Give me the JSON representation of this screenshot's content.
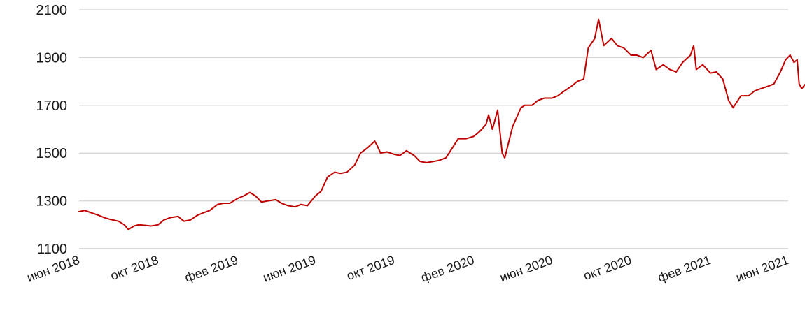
{
  "chart_data": {
    "type": "line",
    "title": "",
    "xlabel": "",
    "ylabel": "",
    "ylim": [
      1100,
      2100
    ],
    "yticks": [
      1100,
      1300,
      1500,
      1700,
      1900,
      2100
    ],
    "ytick_labels": [
      "1100",
      "1300",
      "1500",
      "1700",
      "1900",
      "2100"
    ],
    "xlim": [
      "2018-06-01",
      "2021-06-01"
    ],
    "xticks": [
      "2018-06-01",
      "2018-10-01",
      "2019-02-01",
      "2019-06-01",
      "2019-10-01",
      "2020-02-01",
      "2020-06-01",
      "2020-10-01",
      "2021-02-01",
      "2021-06-01"
    ],
    "xtick_labels": [
      "июн 2018",
      "окт 2018",
      "фев 2019",
      "июн 2019",
      "окт 2019",
      "фев 2020",
      "июн 2020",
      "окт 2020",
      "фев 2021",
      "июн 2021"
    ],
    "grid": "horizontal",
    "line_color": "#c00000",
    "grid_color": "#d9d9d9",
    "series": [
      {
        "x": [
          "2018-06-01",
          "2018-06-10",
          "2018-06-20",
          "2018-07-01",
          "2018-07-10",
          "2018-07-20",
          "2018-08-01",
          "2018-08-10",
          "2018-08-16",
          "2018-08-25",
          "2018-09-01",
          "2018-09-10",
          "2018-09-20",
          "2018-10-01",
          "2018-10-10",
          "2018-10-20",
          "2018-11-01",
          "2018-11-10",
          "2018-11-20",
          "2018-12-01",
          "2018-12-10",
          "2018-12-20",
          "2019-01-01",
          "2019-01-10",
          "2019-01-20",
          "2019-02-01",
          "2019-02-10",
          "2019-02-20",
          "2019-03-01",
          "2019-03-10",
          "2019-03-20",
          "2019-04-01",
          "2019-04-10",
          "2019-04-20",
          "2019-05-01",
          "2019-05-10",
          "2019-05-20",
          "2019-06-01",
          "2019-06-10",
          "2019-06-20",
          "2019-07-01",
          "2019-07-10",
          "2019-07-20",
          "2019-08-01",
          "2019-08-10",
          "2019-08-20",
          "2019-09-01",
          "2019-09-05",
          "2019-09-10",
          "2019-09-20",
          "2019-10-01",
          "2019-10-10",
          "2019-10-20",
          "2019-11-01",
          "2019-11-10",
          "2019-11-20",
          "2019-12-01",
          "2019-12-10",
          "2019-12-20",
          "2020-01-01",
          "2020-01-08",
          "2020-01-20",
          "2020-02-01",
          "2020-02-10",
          "2020-02-20",
          "2020-02-24",
          "2020-03-01",
          "2020-03-09",
          "2020-03-16",
          "2020-03-20",
          "2020-04-01",
          "2020-04-14",
          "2020-04-20",
          "2020-05-01",
          "2020-05-10",
          "2020-05-20",
          "2020-06-01",
          "2020-06-10",
          "2020-06-20",
          "2020-07-01",
          "2020-07-10",
          "2020-07-20",
          "2020-07-27",
          "2020-08-06",
          "2020-08-12",
          "2020-08-20",
          "2020-09-01",
          "2020-09-10",
          "2020-09-20",
          "2020-10-01",
          "2020-10-10",
          "2020-10-20",
          "2020-11-01",
          "2020-11-09",
          "2020-11-20",
          "2020-11-30",
          "2020-12-10",
          "2020-12-20",
          "2021-01-01",
          "2021-01-06",
          "2021-01-10",
          "2021-01-20",
          "2021-02-01",
          "2021-02-10",
          "2021-02-20",
          "2021-03-01",
          "2021-03-08",
          "2021-03-20",
          "2021-04-01",
          "2021-04-10",
          "2021-04-20",
          "2021-05-01",
          "2021-05-10",
          "2021-05-20",
          "2021-05-28",
          "2021-06-04",
          "2021-06-10",
          "2021-06-15",
          "2021-06-18",
          "2021-06-22",
          "2021-06-28",
          "2021-07-02"
        ],
        "values": [
          1255,
          1260,
          1250,
          1240,
          1230,
          1222,
          1215,
          1200,
          1180,
          1195,
          1200,
          1198,
          1195,
          1200,
          1220,
          1230,
          1235,
          1215,
          1220,
          1240,
          1250,
          1260,
          1285,
          1290,
          1290,
          1310,
          1320,
          1335,
          1320,
          1295,
          1300,
          1305,
          1290,
          1280,
          1275,
          1285,
          1280,
          1320,
          1340,
          1400,
          1420,
          1415,
          1420,
          1450,
          1500,
          1520,
          1550,
          1530,
          1500,
          1505,
          1495,
          1490,
          1510,
          1490,
          1465,
          1460,
          1465,
          1470,
          1480,
          1530,
          1560,
          1560,
          1570,
          1590,
          1620,
          1660,
          1600,
          1680,
          1500,
          1480,
          1610,
          1690,
          1700,
          1700,
          1720,
          1730,
          1730,
          1740,
          1760,
          1780,
          1800,
          1810,
          1940,
          1980,
          2060,
          1950,
          1980,
          1950,
          1940,
          1910,
          1910,
          1900,
          1930,
          1850,
          1870,
          1850,
          1840,
          1880,
          1910,
          1950,
          1850,
          1870,
          1835,
          1840,
          1810,
          1720,
          1690,
          1740,
          1740,
          1760,
          1770,
          1780,
          1790,
          1840,
          1890,
          1910,
          1880,
          1890,
          1790,
          1770,
          1790,
          1790
        ],
        "color": "#c00000"
      }
    ]
  }
}
